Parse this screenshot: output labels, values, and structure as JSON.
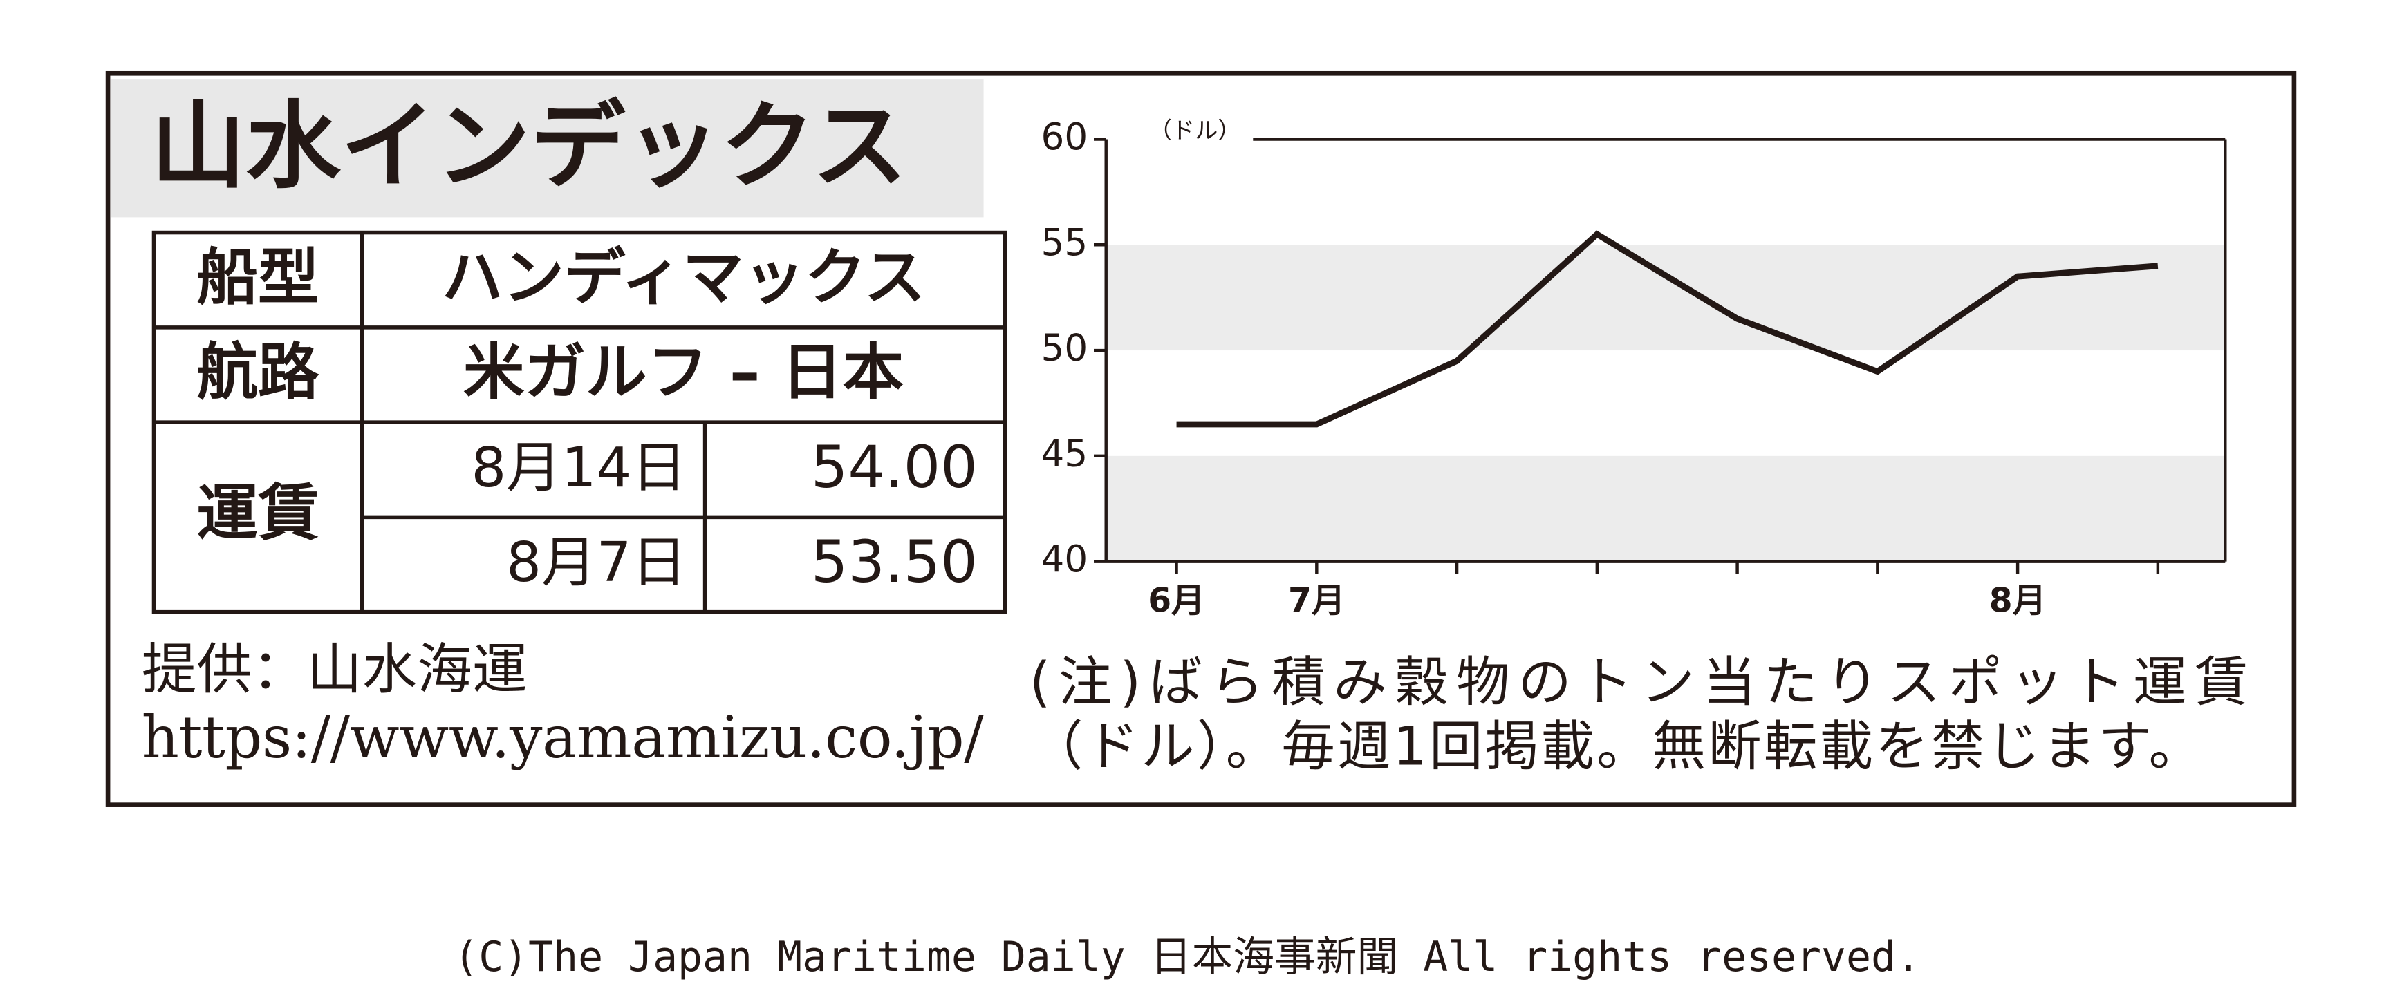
{
  "title": "山水インデックス",
  "table": {
    "ship_type_label": "船型",
    "ship_type": "ハンディマックス",
    "route_label": "航路",
    "route": "米ガルフ – 日本",
    "freight_label": "運賃",
    "freight": [
      {
        "date": "8月14日",
        "rate": "54.00"
      },
      {
        "date": "8月7日",
        "rate": "53.50"
      }
    ]
  },
  "source": "提供：山水海運",
  "url": "https://www.yamamizu.co.jp/",
  "note": [
    "(注)ばら積み穀物のトン当たりスポット運賃",
    "（ドル）。毎週1回掲載。無断転載を禁じます。"
  ],
  "copyright": "(C)The Japan Maritime Daily 日本海事新聞 All rights reserved.",
  "chart_data": {
    "type": "line",
    "y_unit": "（ドル）",
    "categories": [
      "6月",
      "7月",
      null,
      null,
      null,
      null,
      "8月",
      null
    ],
    "values": [
      46.5,
      46.5,
      49.5,
      55.5,
      51.5,
      49.0,
      53.5,
      54.0
    ],
    "color": "#231815",
    "ylim": [
      40,
      60
    ],
    "yticks": [
      40,
      45,
      50,
      55,
      60
    ],
    "bands": true,
    "band_color": "#ececec"
  }
}
